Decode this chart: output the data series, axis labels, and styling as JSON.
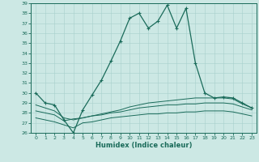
{
  "xlabel": "Humidex (Indice chaleur)",
  "background_color": "#cce8e4",
  "grid_color": "#a8d0cc",
  "line_color": "#1a6b5a",
  "x_values": [
    0,
    1,
    2,
    3,
    4,
    5,
    6,
    7,
    8,
    9,
    10,
    11,
    12,
    13,
    14,
    15,
    16,
    17,
    18,
    19,
    20,
    21,
    22,
    23
  ],
  "main_line": [
    30.0,
    29.0,
    28.8,
    27.3,
    26.0,
    28.3,
    29.8,
    31.3,
    33.2,
    35.2,
    37.5,
    38.0,
    36.5,
    37.2,
    38.8,
    36.5,
    38.5,
    33.0,
    30.0,
    29.5,
    29.6,
    29.5,
    29.0,
    28.5
  ],
  "flat_line1": [
    28.8,
    28.5,
    28.2,
    27.5,
    27.3,
    27.5,
    27.7,
    27.9,
    28.1,
    28.3,
    28.6,
    28.8,
    29.0,
    29.1,
    29.2,
    29.3,
    29.4,
    29.5,
    29.5,
    29.5,
    29.5,
    29.4,
    28.9,
    28.5
  ],
  "flat_line2": [
    28.2,
    28.0,
    27.8,
    27.2,
    27.4,
    27.5,
    27.7,
    27.8,
    28.0,
    28.1,
    28.3,
    28.5,
    28.6,
    28.7,
    28.8,
    28.8,
    28.9,
    28.9,
    29.0,
    29.0,
    29.0,
    28.9,
    28.6,
    28.3
  ],
  "flat_line3": [
    27.5,
    27.3,
    27.1,
    26.8,
    26.5,
    27.0,
    27.1,
    27.3,
    27.5,
    27.6,
    27.7,
    27.8,
    27.9,
    27.9,
    28.0,
    28.0,
    28.1,
    28.1,
    28.2,
    28.2,
    28.2,
    28.1,
    27.9,
    27.7
  ],
  "ylim": [
    26,
    39
  ],
  "xlim": [
    -0.5,
    23.5
  ],
  "yticks": [
    26,
    27,
    28,
    29,
    30,
    31,
    32,
    33,
    34,
    35,
    36,
    37,
    38,
    39
  ],
  "xticks": [
    0,
    1,
    2,
    3,
    4,
    5,
    6,
    7,
    8,
    9,
    10,
    11,
    12,
    13,
    14,
    15,
    16,
    17,
    18,
    19,
    20,
    21,
    22,
    23
  ]
}
